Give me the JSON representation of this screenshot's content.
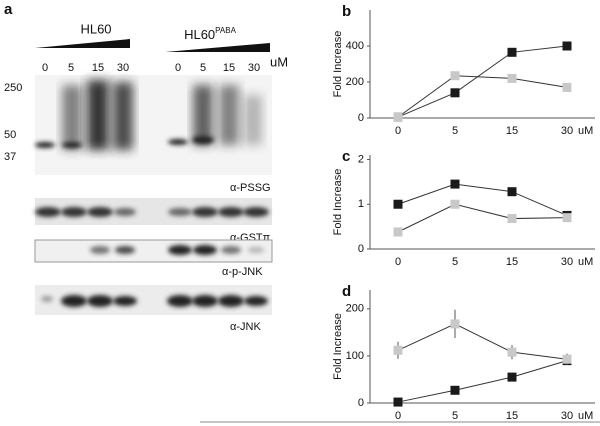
{
  "blot": {
    "panel": "a",
    "groups": [
      {
        "name": "HL60"
      },
      {
        "name": "HL60",
        "superscript": "PABA"
      }
    ],
    "lanes": [
      "0",
      "5",
      "15",
      "30"
    ],
    "unit": "uM",
    "markers": [
      "250",
      "50",
      "37"
    ],
    "antibodies": [
      "α-PSSG",
      "α-GSTπ",
      "α-p-JNK",
      "α-JNK"
    ]
  },
  "chart_data": [
    {
      "type": "line",
      "panel": "b",
      "ylabel": "Fold Increase",
      "x_unit": "uM",
      "categories": [
        "0",
        "5",
        "15",
        "30"
      ],
      "ylim": [
        0,
        600
      ],
      "yticks": [
        0,
        200,
        400
      ],
      "series": [
        {
          "color": "#1a1a1a",
          "values": [
            5,
            140,
            365,
            400
          ]
        },
        {
          "color": "#c8c8c8",
          "values": [
            5,
            235,
            220,
            170
          ]
        }
      ]
    },
    {
      "type": "line",
      "panel": "c",
      "ylabel": "Fold Increase",
      "x_unit": "uM",
      "categories": [
        "0",
        "5",
        "15",
        "30"
      ],
      "ylim": [
        0,
        2.1
      ],
      "yticks": [
        0,
        1,
        2
      ],
      "series": [
        {
          "color": "#1a1a1a",
          "values": [
            1.0,
            1.45,
            1.28,
            0.75
          ]
        },
        {
          "color": "#c8c8c8",
          "values": [
            0.38,
            1.0,
            0.68,
            0.7
          ]
        }
      ]
    },
    {
      "type": "line",
      "panel": "d",
      "ylabel": "Fold Increase",
      "x_unit": "uM",
      "categories": [
        "0",
        "5",
        "15",
        "30"
      ],
      "ylim": [
        0,
        240
      ],
      "yticks": [
        0,
        100,
        200
      ],
      "series": [
        {
          "color": "#1a1a1a",
          "values": [
            2,
            27,
            55,
            90
          ]
        },
        {
          "color": "#c8c8c8",
          "values": [
            112,
            168,
            108,
            93
          ],
          "errors": [
            18,
            30,
            15,
            12
          ]
        }
      ]
    }
  ]
}
